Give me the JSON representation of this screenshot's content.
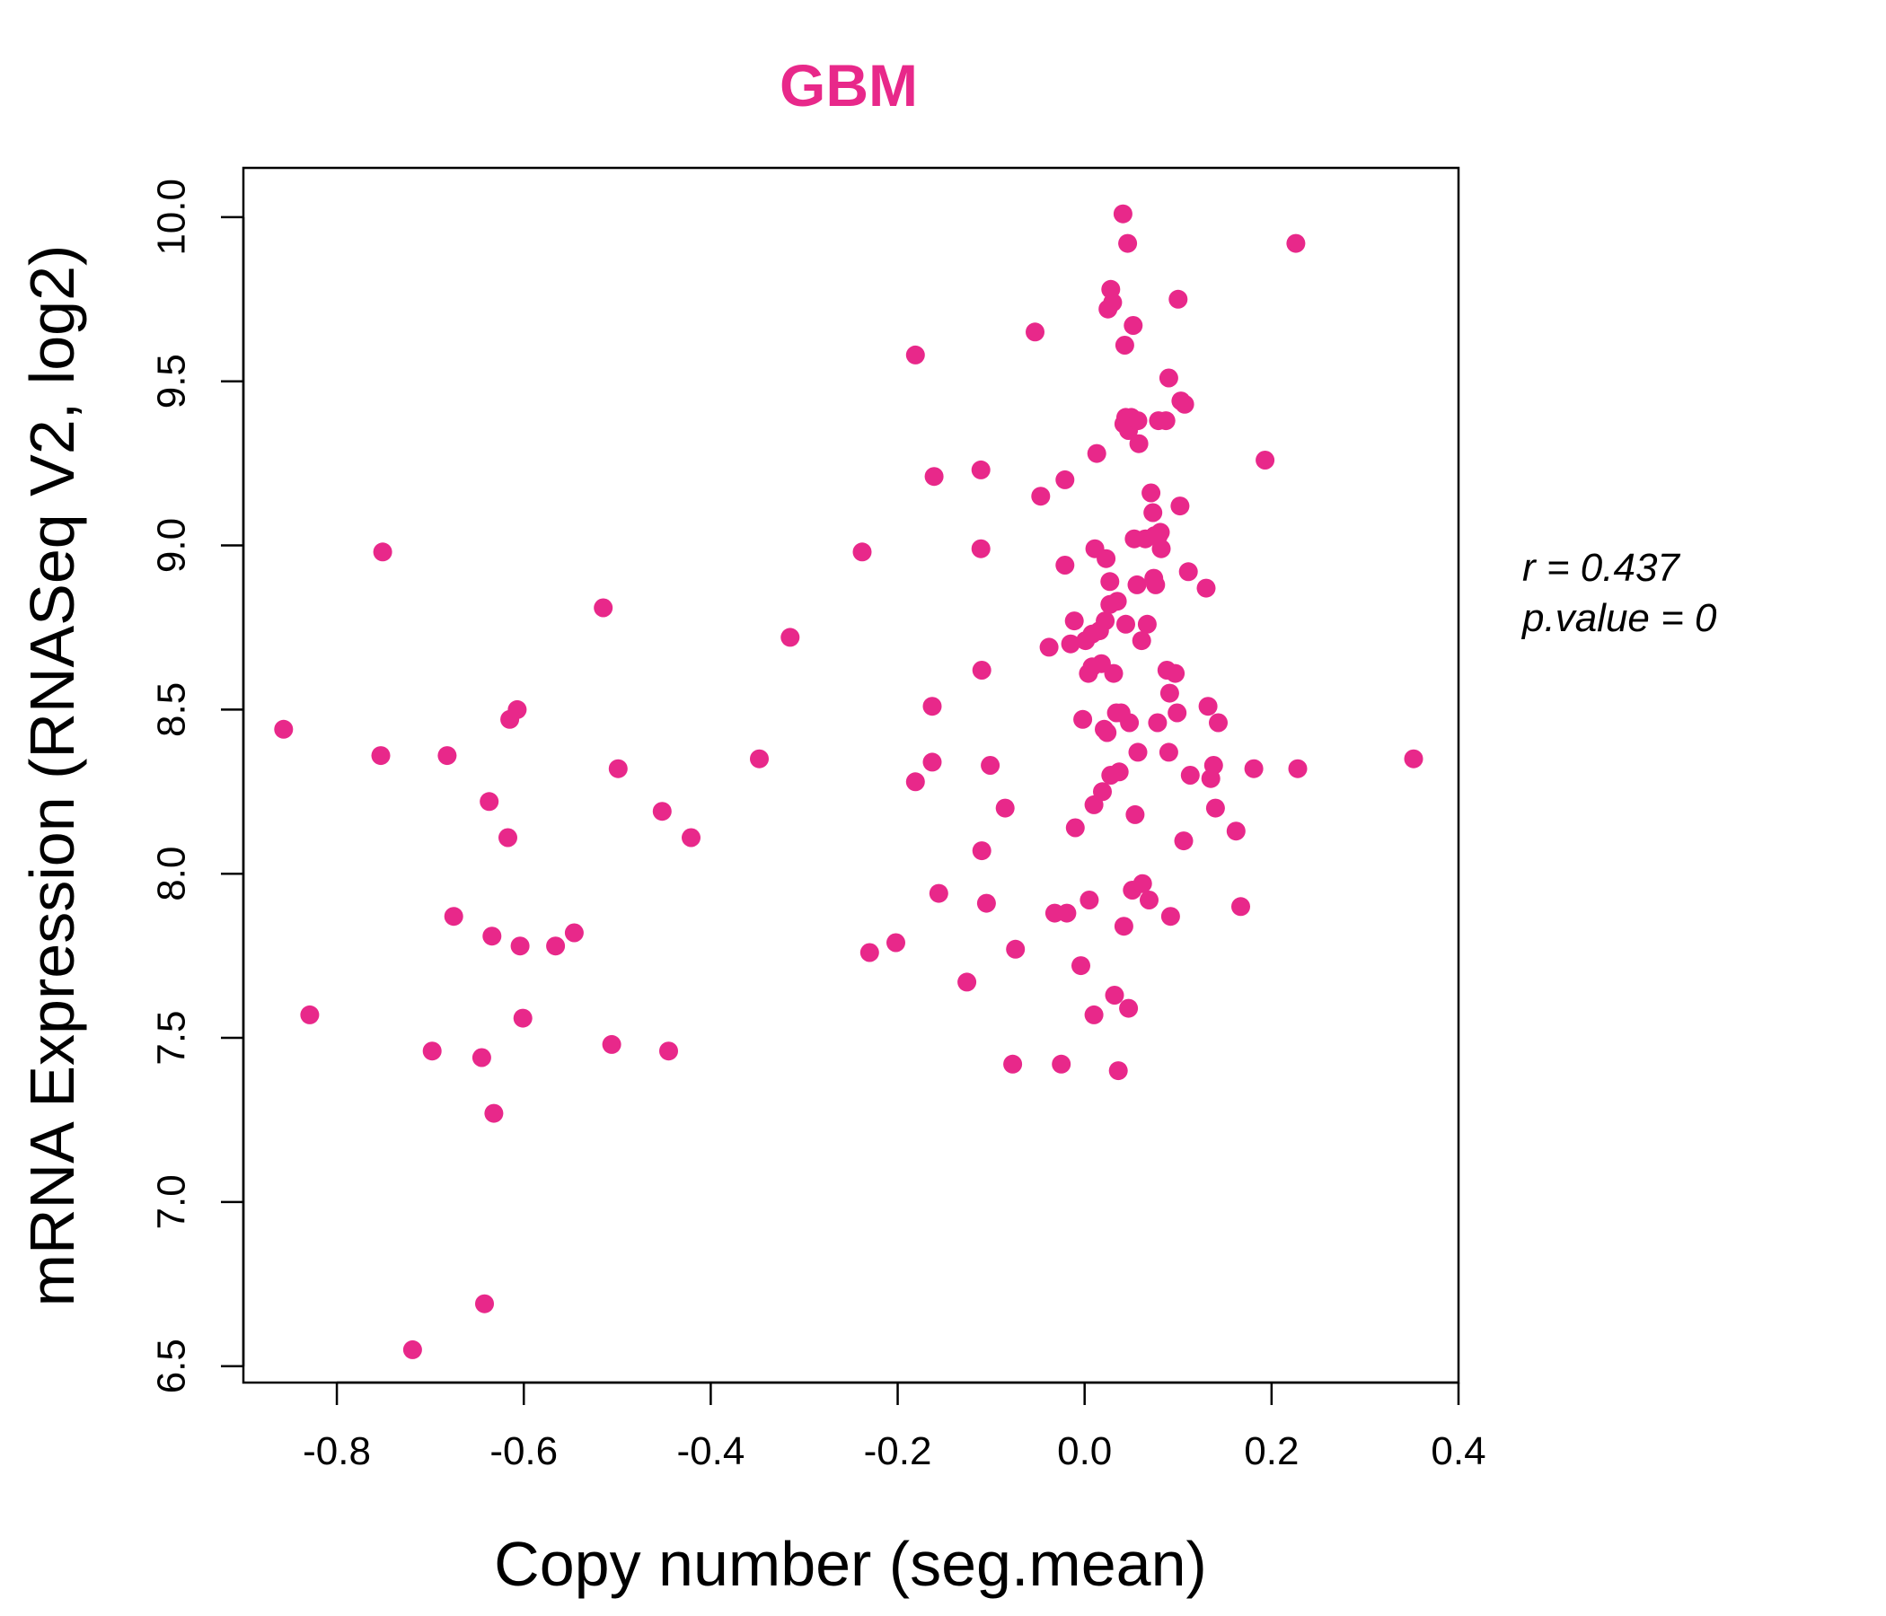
{
  "chart_data": {
    "type": "scatter",
    "title": "GBM",
    "xlabel": "Copy number (seg.mean)",
    "ylabel": "mRNA Expression (RNASeq V2, log2)",
    "xlim": [
      -0.9,
      0.4
    ],
    "ylim": [
      6.45,
      10.15
    ],
    "xticks": [
      -0.8,
      -0.6,
      -0.4,
      -0.2,
      0.0,
      0.2,
      0.4
    ],
    "xtick_labels": [
      "-0.8",
      "-0.6",
      "-0.4",
      "-0.2",
      "0.0",
      "0.2",
      "0.4"
    ],
    "yticks": [
      6.5,
      7.0,
      7.5,
      8.0,
      8.5,
      9.0,
      9.5,
      10.0
    ],
    "ytick_labels": [
      "6.5",
      "7.0",
      "7.5",
      "8.0",
      "8.5",
      "9.0",
      "9.5",
      "10.0"
    ],
    "grid": false,
    "color": "#E8288A",
    "annotations": {
      "r_label": "r = 0.437",
      "p_label": "p.value = 0"
    },
    "points": [
      [
        -0.857,
        8.44
      ],
      [
        -0.829,
        7.57
      ],
      [
        -0.751,
        8.98
      ],
      [
        -0.753,
        8.36
      ],
      [
        -0.719,
        6.55
      ],
      [
        -0.698,
        7.46
      ],
      [
        -0.682,
        8.36
      ],
      [
        -0.675,
        7.87
      ],
      [
        -0.642,
        6.69
      ],
      [
        -0.645,
        7.44
      ],
      [
        -0.637,
        8.22
      ],
      [
        -0.634,
        7.81
      ],
      [
        -0.632,
        7.27
      ],
      [
        -0.617,
        8.11
      ],
      [
        -0.615,
        8.47
      ],
      [
        -0.607,
        8.5
      ],
      [
        -0.604,
        7.78
      ],
      [
        -0.601,
        7.56
      ],
      [
        -0.566,
        7.78
      ],
      [
        -0.546,
        7.82
      ],
      [
        -0.515,
        8.81
      ],
      [
        -0.506,
        7.48
      ],
      [
        -0.499,
        8.32
      ],
      [
        -0.452,
        8.19
      ],
      [
        -0.445,
        7.46
      ],
      [
        -0.421,
        8.11
      ],
      [
        -0.348,
        8.35
      ],
      [
        -0.315,
        8.72
      ],
      [
        -0.238,
        8.98
      ],
      [
        -0.23,
        7.76
      ],
      [
        -0.202,
        7.79
      ],
      [
        -0.181,
        9.58
      ],
      [
        -0.181,
        8.28
      ],
      [
        -0.163,
        8.51
      ],
      [
        -0.163,
        8.34
      ],
      [
        -0.161,
        9.21
      ],
      [
        -0.156,
        7.94
      ],
      [
        -0.126,
        7.67
      ],
      [
        -0.111,
        9.23
      ],
      [
        -0.111,
        8.99
      ],
      [
        -0.11,
        8.62
      ],
      [
        -0.11,
        8.07
      ],
      [
        -0.105,
        7.91
      ],
      [
        -0.101,
        8.33
      ],
      [
        -0.085,
        8.2
      ],
      [
        -0.077,
        7.42
      ],
      [
        -0.074,
        7.77
      ],
      [
        -0.053,
        9.65
      ],
      [
        -0.047,
        9.15
      ],
      [
        -0.038,
        8.69
      ],
      [
        -0.032,
        7.88
      ],
      [
        -0.025,
        7.42
      ],
      [
        -0.021,
        9.2
      ],
      [
        -0.021,
        8.94
      ],
      [
        -0.019,
        7.88
      ],
      [
        -0.015,
        8.7
      ],
      [
        -0.011,
        8.77
      ],
      [
        -0.01,
        8.14
      ],
      [
        -0.004,
        7.72
      ],
      [
        -0.002,
        8.47
      ],
      [
        0.001,
        8.71
      ],
      [
        0.004,
        8.61
      ],
      [
        0.005,
        7.92
      ],
      [
        0.008,
        8.63
      ],
      [
        0.008,
        8.73
      ],
      [
        0.01,
        7.57
      ],
      [
        0.01,
        8.21
      ],
      [
        0.011,
        8.99
      ],
      [
        0.013,
        9.28
      ],
      [
        0.016,
        8.74
      ],
      [
        0.018,
        8.64
      ],
      [
        0.019,
        8.25
      ],
      [
        0.021,
        8.44
      ],
      [
        0.022,
        8.77
      ],
      [
        0.023,
        8.96
      ],
      [
        0.024,
        8.43
      ],
      [
        0.025,
        9.72
      ],
      [
        0.027,
        8.82
      ],
      [
        0.027,
        8.89
      ],
      [
        0.028,
        9.78
      ],
      [
        0.028,
        8.3
      ],
      [
        0.03,
        9.74
      ],
      [
        0.031,
        8.61
      ],
      [
        0.032,
        7.63
      ],
      [
        0.034,
        8.49
      ],
      [
        0.035,
        8.83
      ],
      [
        0.036,
        7.4
      ],
      [
        0.037,
        8.31
      ],
      [
        0.039,
        8.49
      ],
      [
        0.041,
        10.01
      ],
      [
        0.042,
        7.84
      ],
      [
        0.042,
        9.37
      ],
      [
        0.043,
        9.61
      ],
      [
        0.044,
        8.76
      ],
      [
        0.044,
        9.39
      ],
      [
        0.046,
        9.92
      ],
      [
        0.047,
        9.35
      ],
      [
        0.047,
        7.59
      ],
      [
        0.048,
        8.46
      ],
      [
        0.05,
        9.39
      ],
      [
        0.051,
        7.95
      ],
      [
        0.052,
        9.67
      ],
      [
        0.053,
        9.02
      ],
      [
        0.054,
        8.18
      ],
      [
        0.056,
        8.88
      ],
      [
        0.057,
        9.38
      ],
      [
        0.057,
        8.37
      ],
      [
        0.058,
        9.31
      ],
      [
        0.061,
        8.71
      ],
      [
        0.062,
        7.97
      ],
      [
        0.065,
        9.02
      ],
      [
        0.067,
        8.76
      ],
      [
        0.069,
        7.92
      ],
      [
        0.071,
        9.16
      ],
      [
        0.073,
        9.1
      ],
      [
        0.074,
        8.9
      ],
      [
        0.075,
        9.03
      ],
      [
        0.076,
        8.88
      ],
      [
        0.078,
        8.46
      ],
      [
        0.079,
        9.03
      ],
      [
        0.079,
        9.38
      ],
      [
        0.081,
        9.04
      ],
      [
        0.082,
        8.99
      ],
      [
        0.087,
        9.38
      ],
      [
        0.088,
        8.62
      ],
      [
        0.09,
        9.51
      ],
      [
        0.09,
        8.37
      ],
      [
        0.091,
        8.55
      ],
      [
        0.092,
        7.87
      ],
      [
        0.097,
        8.61
      ],
      [
        0.099,
        8.49
      ],
      [
        0.1,
        9.75
      ],
      [
        0.102,
        9.12
      ],
      [
        0.103,
        9.44
      ],
      [
        0.106,
        8.1
      ],
      [
        0.107,
        9.43
      ],
      [
        0.111,
        8.92
      ],
      [
        0.113,
        8.3
      ],
      [
        0.13,
        8.87
      ],
      [
        0.132,
        8.51
      ],
      [
        0.135,
        8.29
      ],
      [
        0.138,
        8.33
      ],
      [
        0.14,
        8.2
      ],
      [
        0.143,
        8.46
      ],
      [
        0.162,
        8.13
      ],
      [
        0.167,
        7.9
      ],
      [
        0.181,
        8.32
      ],
      [
        0.193,
        9.26
      ],
      [
        0.226,
        9.92
      ],
      [
        0.228,
        8.32
      ],
      [
        0.352,
        8.35
      ]
    ]
  }
}
